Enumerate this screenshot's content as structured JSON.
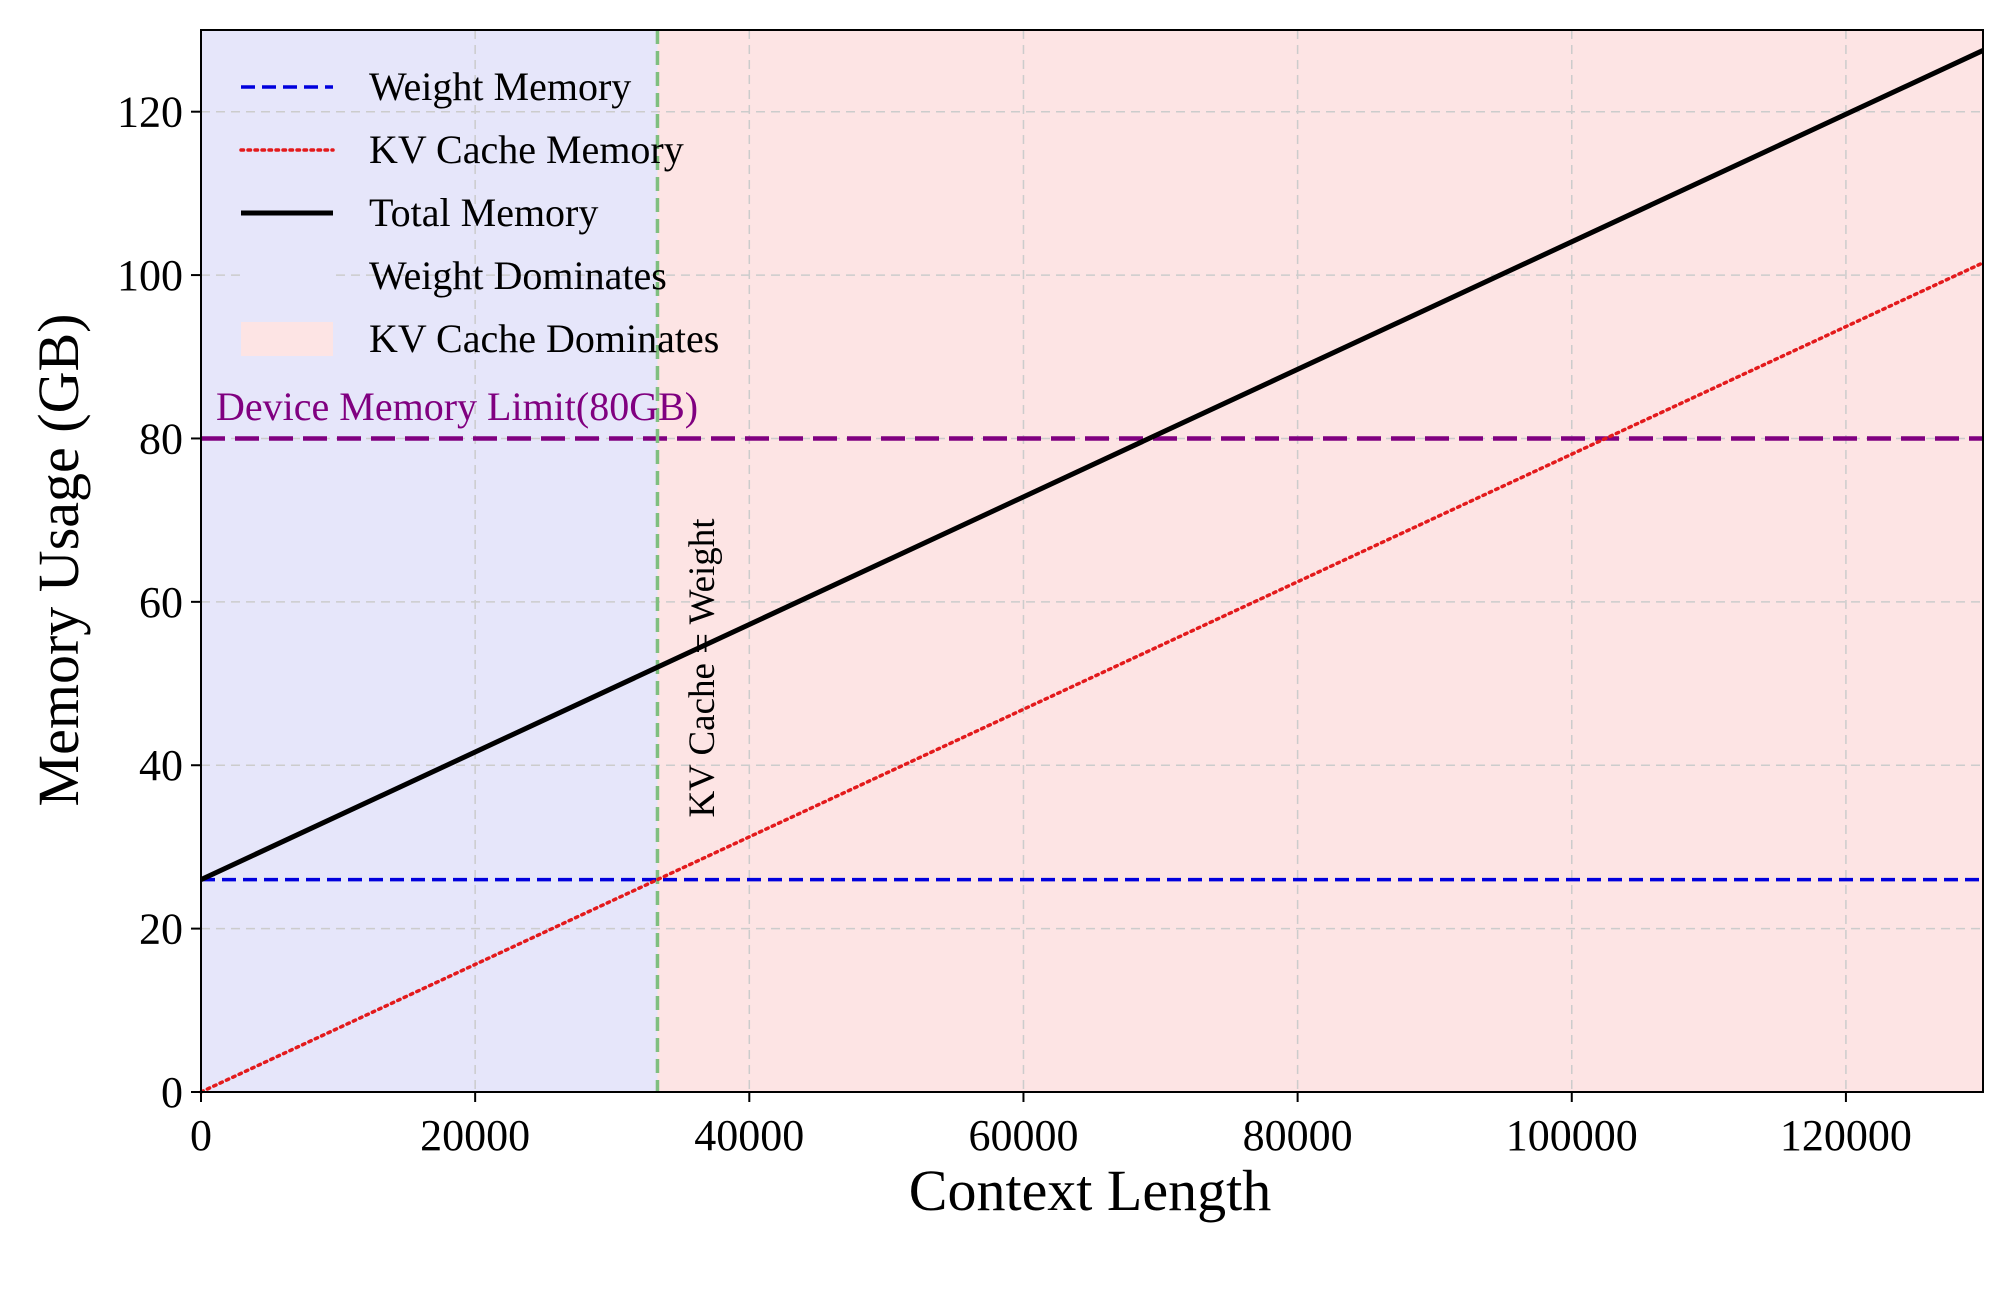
{
  "chart_data": {
    "type": "line",
    "xlabel": "Context Length",
    "ylabel": "Memory Usage (GB)",
    "xlim": [
      0,
      130000
    ],
    "ylim": [
      0,
      130
    ],
    "xticks": [
      0,
      20000,
      40000,
      60000,
      80000,
      100000,
      120000
    ],
    "yticks": [
      0,
      20,
      40,
      60,
      80,
      100,
      120
    ],
    "grid": true,
    "legend_position": "top-left",
    "series": [
      {
        "name": "Weight Memory",
        "style": "dashed",
        "color": "#0000dd",
        "x": [
          0,
          130000
        ],
        "y": [
          26,
          26
        ]
      },
      {
        "name": "KV Cache Memory",
        "style": "dotted",
        "color": "#e31a1c",
        "x": [
          0,
          130000
        ],
        "y": [
          0,
          101.5
        ]
      },
      {
        "name": "Total Memory",
        "style": "solid",
        "color": "#000000",
        "x": [
          0,
          130000
        ],
        "y": [
          26,
          127.5
        ]
      }
    ],
    "regions": [
      {
        "name": "Weight Dominates",
        "color": "#e6e6fa",
        "x_start": 0,
        "x_end": 33300
      },
      {
        "name": "KV Cache Dominates",
        "color": "#fde4e4",
        "x_start": 33300,
        "x_end": 130000
      }
    ],
    "reference_lines": [
      {
        "orientation": "horizontal",
        "value": 80,
        "color": "#800080",
        "style": "dashed",
        "label": "Device Memory Limit(80GB)"
      },
      {
        "orientation": "vertical",
        "value": 33300,
        "color": "#7fbf7f",
        "style": "dashed",
        "label": "KV Cache = Weight"
      }
    ]
  }
}
